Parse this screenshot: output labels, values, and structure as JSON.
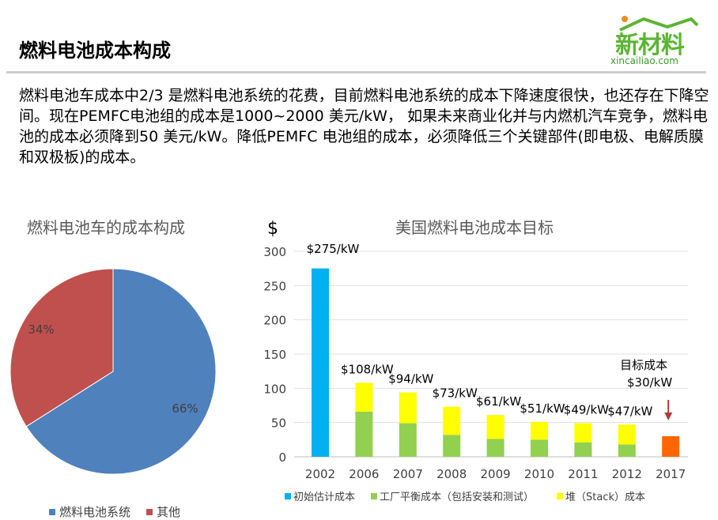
{
  "header": {
    "title": "燃料电池成本构成",
    "logo_text": "新材料",
    "logo_url": "xincailiao.com"
  },
  "body_text": "燃料电池车成本中2/3 是燃料电池系统的花费，目前燃料电池系统的成本下降速度很快，也还存在下降空间。现在PEMFC电池组的成本是1000~2000 美元/kW， 如果未来商业化并与内燃机汽车竞争，燃料电池的成本必须降到50 美元/kW。降低PEMFC 电池组的成本，必须降低三个关键部件(即电极、电解质膜和双极板)的成本。",
  "chart_data": [
    {
      "type": "pie",
      "title": "燃料电池车的成本构成",
      "slices": [
        {
          "name": "燃料电池系统",
          "value": 66,
          "label": "66%",
          "color": "#4F81BD"
        },
        {
          "name": "其他",
          "value": 34,
          "label": "34%",
          "color": "#C0504D"
        }
      ],
      "legend": "bottom"
    },
    {
      "type": "bar",
      "stacked": true,
      "title": "美国燃料电池成本目标",
      "ylabel": "$",
      "ylim": [
        0,
        300
      ],
      "yticks": [
        0,
        50,
        100,
        150,
        200,
        250,
        300
      ],
      "grid": true,
      "legend": "bottom",
      "categories": [
        "2002",
        "2006",
        "2007",
        "2008",
        "2009",
        "2010",
        "2011",
        "2012",
        "2017"
      ],
      "series": [
        {
          "name": "初始估计成本",
          "color": "#00B0F0",
          "values": [
            275,
            0,
            0,
            0,
            0,
            0,
            0,
            0,
            0
          ]
        },
        {
          "name": "工厂平衡成本（包括安装和测试）",
          "color": "#92D050",
          "values": [
            0,
            66,
            49,
            32,
            26,
            25,
            21,
            18,
            0
          ]
        },
        {
          "name": "堆（Stack）成本",
          "color": "#FFFF00",
          "values": [
            0,
            42,
            45,
            41,
            35,
            26,
            28,
            29,
            0
          ]
        },
        {
          "color": "#FF6600",
          "values": [
            0,
            0,
            0,
            0,
            0,
            0,
            0,
            0,
            30
          ]
        }
      ],
      "data_labels": [
        "$275/kW",
        "$108/kW",
        "$94/kW",
        "$73/kW",
        "$61/kW",
        "$51/kW",
        "$49/kW",
        "$47/kW",
        "$30/kW"
      ],
      "annotation": "目标成本"
    }
  ]
}
